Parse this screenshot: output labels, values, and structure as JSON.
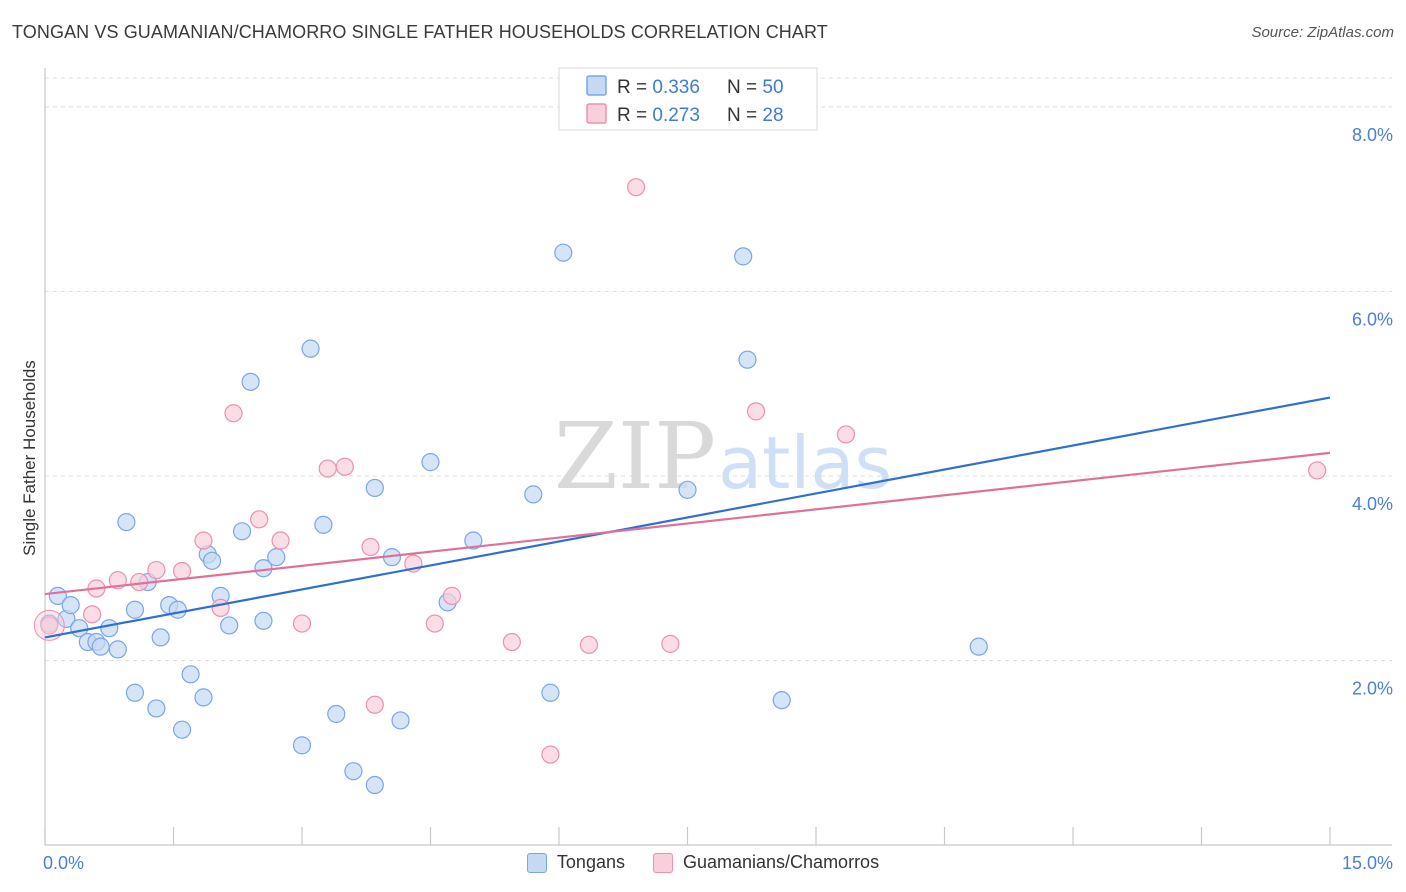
{
  "header": {
    "title": "TONGAN VS GUAMANIAN/CHAMORRO SINGLE FATHER HOUSEHOLDS CORRELATION CHART",
    "source": "Source: ZipAtlas.com"
  },
  "watermark": {
    "zip": "ZIP",
    "atlas": "atlas"
  },
  "colors": {
    "tongan_fill": "#c5d9f5",
    "tongan_stroke": "#7aa6e6",
    "tongan_line": "#2f6fd0",
    "guam_fill": "#f9cfdc",
    "guam_stroke": "#ec90ae",
    "guam_line": "#e0709a",
    "accent_text": "#4a7fd4"
  },
  "legend": {
    "rows": [
      {
        "r_label": "R = ",
        "r_value": "0.336",
        "n_label": "N = ",
        "n_value": "50"
      },
      {
        "r_label": "R = ",
        "r_value": "0.273",
        "n_label": "N = ",
        "n_value": "28"
      }
    ]
  },
  "bottom_legend": {
    "series_a": "Tongans",
    "series_b": "Guamanians/Chamorros"
  },
  "chart_data": {
    "type": "scatter",
    "title": "TONGAN VS GUAMANIAN/CHAMORRO SINGLE FATHER HOUSEHOLDS CORRELATION CHART",
    "xlabel": "",
    "ylabel": "Single Father Households",
    "xlim": [
      0,
      15
    ],
    "ylim": [
      0,
      8.4
    ],
    "x_tick_labels": [
      "0.0%",
      "15.0%"
    ],
    "y_ticks": [
      2,
      4,
      6,
      8
    ],
    "y_tick_labels": [
      "2.0%",
      "4.0%",
      "6.0%",
      "8.0%"
    ],
    "grid": true,
    "series": [
      {
        "name": "Tongans",
        "r": 0.336,
        "n": 50,
        "trend": {
          "x0": 0,
          "y0": 2.25,
          "x1": 15,
          "y1": 4.85
        },
        "points": [
          [
            0.05,
            2.4
          ],
          [
            0.15,
            2.7
          ],
          [
            0.25,
            2.45
          ],
          [
            0.3,
            2.6
          ],
          [
            0.4,
            2.35
          ],
          [
            0.5,
            2.2
          ],
          [
            0.6,
            2.2
          ],
          [
            0.65,
            2.15
          ],
          [
            0.75,
            2.35
          ],
          [
            0.85,
            2.12
          ],
          [
            0.95,
            3.5
          ],
          [
            1.05,
            2.55
          ],
          [
            1.05,
            1.65
          ],
          [
            1.2,
            2.85
          ],
          [
            1.3,
            1.48
          ],
          [
            1.35,
            2.25
          ],
          [
            1.45,
            2.6
          ],
          [
            1.55,
            2.55
          ],
          [
            1.6,
            1.25
          ],
          [
            1.7,
            1.85
          ],
          [
            1.85,
            1.6
          ],
          [
            1.9,
            3.15
          ],
          [
            1.95,
            3.08
          ],
          [
            2.05,
            2.7
          ],
          [
            2.15,
            2.38
          ],
          [
            2.3,
            3.4
          ],
          [
            2.4,
            5.02
          ],
          [
            2.55,
            3.0
          ],
          [
            2.55,
            2.43
          ],
          [
            2.7,
            3.12
          ],
          [
            3.1,
            5.38
          ],
          [
            3.0,
            1.08
          ],
          [
            3.25,
            3.47
          ],
          [
            3.4,
            1.42
          ],
          [
            3.6,
            0.8
          ],
          [
            3.85,
            0.65
          ],
          [
            3.85,
            3.87
          ],
          [
            4.05,
            3.12
          ],
          [
            4.15,
            1.35
          ],
          [
            4.5,
            4.15
          ],
          [
            4.7,
            2.63
          ],
          [
            5.0,
            3.3
          ],
          [
            5.7,
            3.8
          ],
          [
            6.05,
            6.42
          ],
          [
            5.9,
            1.65
          ],
          [
            7.5,
            3.85
          ],
          [
            8.15,
            6.38
          ],
          [
            8.2,
            5.26
          ],
          [
            8.6,
            1.57
          ],
          [
            10.9,
            2.15
          ]
        ]
      },
      {
        "name": "Guamanians/Chamorros",
        "r": 0.273,
        "n": 28,
        "trend": {
          "x0": 0,
          "y0": 2.72,
          "x1": 15,
          "y1": 4.25
        },
        "points": [
          [
            0.05,
            2.38
          ],
          [
            0.55,
            2.5
          ],
          [
            0.6,
            2.78
          ],
          [
            0.85,
            2.87
          ],
          [
            1.1,
            2.85
          ],
          [
            1.3,
            2.98
          ],
          [
            1.6,
            2.97
          ],
          [
            1.85,
            3.3
          ],
          [
            2.05,
            2.57
          ],
          [
            2.2,
            4.68
          ],
          [
            2.5,
            3.53
          ],
          [
            2.75,
            3.3
          ],
          [
            3.0,
            2.4
          ],
          [
            3.3,
            4.08
          ],
          [
            3.5,
            4.1
          ],
          [
            3.8,
            3.23
          ],
          [
            3.85,
            1.52
          ],
          [
            4.3,
            3.05
          ],
          [
            4.55,
            2.4
          ],
          [
            4.75,
            2.7
          ],
          [
            5.45,
            2.2
          ],
          [
            5.9,
            0.98
          ],
          [
            6.35,
            2.17
          ],
          [
            6.9,
            7.13
          ],
          [
            7.3,
            2.18
          ],
          [
            8.3,
            4.7
          ],
          [
            9.35,
            4.45
          ],
          [
            14.85,
            4.06
          ]
        ]
      }
    ]
  }
}
